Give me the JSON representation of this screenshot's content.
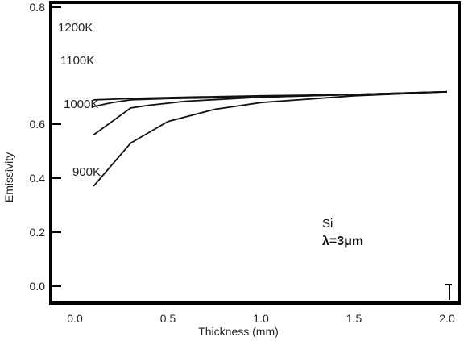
{
  "chart_data": {
    "type": "line",
    "title": "",
    "xlabel": "Thickness (mm)",
    "ylabel": "Emissivity",
    "xlim": [
      -0.05,
      2.05
    ],
    "ylim": [
      -0.05,
      0.8
    ],
    "x_ticks": [
      {
        "value": 0.0,
        "label": "0.0"
      },
      {
        "value": 0.5,
        "label": "0.5"
      },
      {
        "value": 1.0,
        "label": "1.0"
      },
      {
        "value": 1.5,
        "label": "1.5"
      },
      {
        "value": 2.0,
        "label": "2.0"
      }
    ],
    "y_ticks": [
      {
        "value": 0.0,
        "label": "0.0"
      },
      {
        "value": 0.2,
        "label": "0.2"
      },
      {
        "value": 0.4,
        "label": "0.4"
      },
      {
        "value": 0.6,
        "label": "0.6"
      },
      {
        "value": 0.8,
        "label": "0.8"
      }
    ],
    "grid": false,
    "series": [
      {
        "name": "1200K",
        "x": [
          0.1,
          0.3,
          0.6,
          1.0,
          1.5,
          2.0
        ],
        "y": [
          0.69,
          0.695,
          0.7,
          0.705,
          0.71,
          0.72
        ]
      },
      {
        "name": "1100K",
        "x": [
          0.1,
          0.2,
          0.3,
          0.5,
          1.0,
          1.5,
          2.0
        ],
        "y": [
          0.665,
          0.68,
          0.69,
          0.695,
          0.7,
          0.71,
          0.72
        ]
      },
      {
        "name": "1000K",
        "x": [
          0.1,
          0.2,
          0.3,
          0.4,
          0.6,
          1.0,
          1.5,
          2.0
        ],
        "y": [
          0.56,
          0.61,
          0.66,
          0.67,
          0.685,
          0.7,
          0.71,
          0.72
        ]
      },
      {
        "name": "900K",
        "x": [
          0.1,
          0.3,
          0.5,
          0.75,
          1.0,
          1.5,
          2.0
        ],
        "y": [
          0.37,
          0.53,
          0.61,
          0.655,
          0.68,
          0.705,
          0.72
        ]
      }
    ],
    "annotations": [
      "Si",
      "λ=3μm"
    ]
  }
}
